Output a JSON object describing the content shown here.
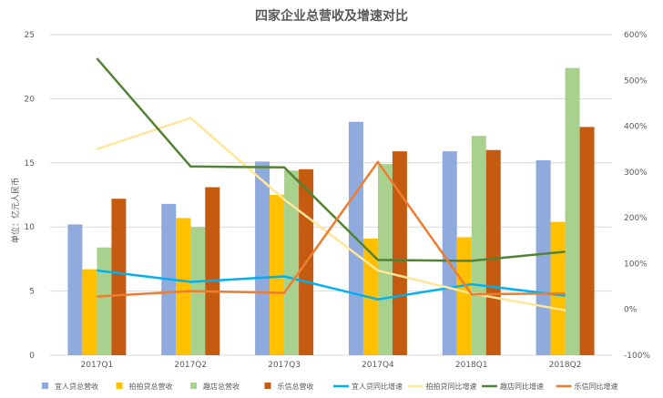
{
  "chart_data": {
    "type": "bar",
    "title": "四家企业总营收及增速对比",
    "ylabel": "单位：亿元人民币",
    "categories": [
      "2017Q1",
      "2017Q2",
      "2017Q3",
      "2017Q4",
      "2018Q1",
      "2018Q2"
    ],
    "ylim": [
      0,
      25
    ],
    "y_ticks": [
      "0",
      "5",
      "10",
      "15",
      "20",
      "25"
    ],
    "y2lim": [
      -100,
      600
    ],
    "y2_ticks": [
      "-100%",
      "0%",
      "100%",
      "200%",
      "300%",
      "400%",
      "500%",
      "600%"
    ],
    "grid": true,
    "legend_position": "bottom",
    "bar_series": [
      {
        "name": "宜人贷总营收",
        "color": "#8faadc",
        "values": [
          10.2,
          11.8,
          15.1,
          18.2,
          15.9,
          15.2
        ]
      },
      {
        "name": "拍拍贷总营收",
        "color": "#ffc000",
        "values": [
          6.7,
          10.7,
          12.5,
          9.1,
          9.2,
          10.4
        ]
      },
      {
        "name": "趣店总营收",
        "color": "#a9d18e",
        "values": [
          8.4,
          10.0,
          14.4,
          14.9,
          17.1,
          22.4
        ]
      },
      {
        "name": "乐信总营收",
        "color": "#c55a11",
        "values": [
          12.2,
          13.1,
          14.5,
          15.9,
          16.0,
          17.8
        ]
      }
    ],
    "line_series": [
      {
        "name": "宜人贷同比增速",
        "color": "#00b0f0",
        "values": [
          85,
          60,
          72,
          22,
          55,
          30
        ]
      },
      {
        "name": "拍拍贷同比增速",
        "color": "#ffe699",
        "values": [
          350,
          418,
          240,
          85,
          35,
          -2
        ]
      },
      {
        "name": "趣店同比增速",
        "color": "#548235",
        "values": [
          548,
          312,
          310,
          108,
          106,
          126
        ]
      },
      {
        "name": "乐信同比增速",
        "color": "#ed7d31",
        "values": [
          28,
          40,
          36,
          322,
          33,
          35
        ]
      }
    ]
  }
}
